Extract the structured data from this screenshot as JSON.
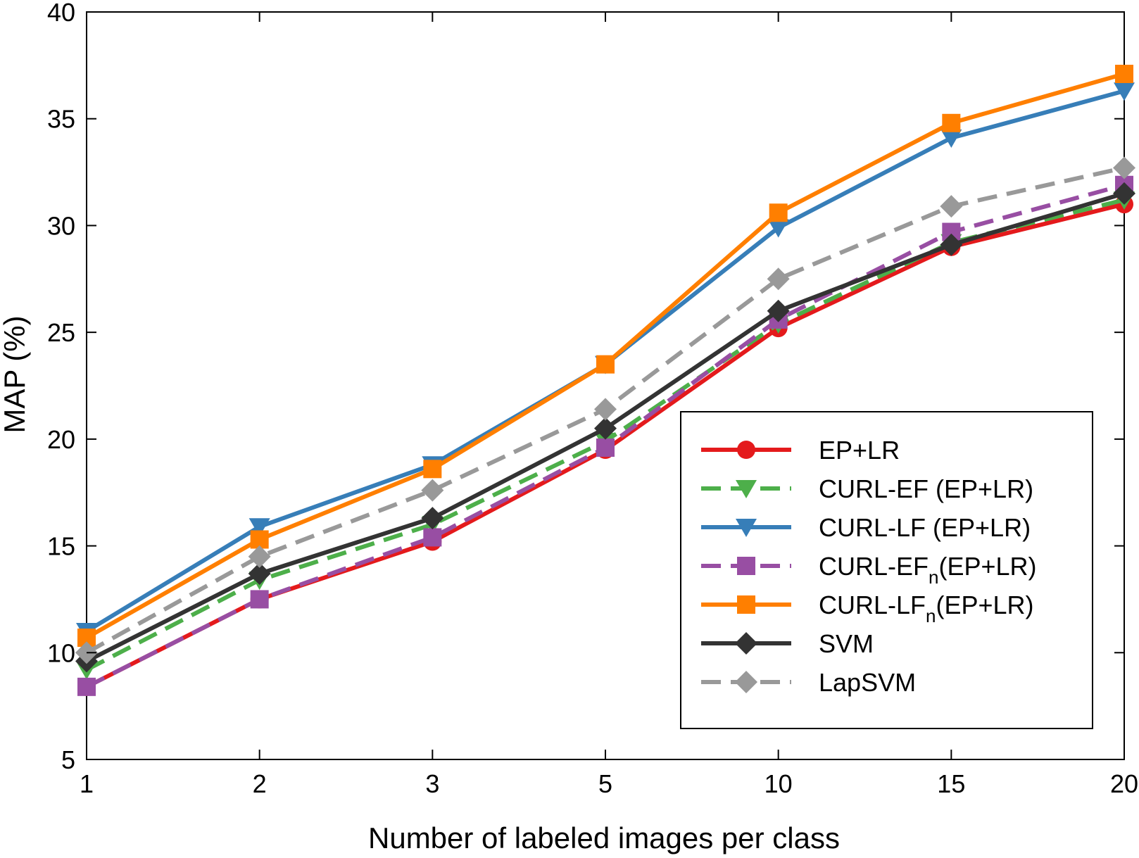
{
  "chart_data": {
    "type": "line",
    "title": "",
    "xlabel": "Number of labeled images per class",
    "ylabel": "MAP (%)",
    "categories": [
      "1",
      "2",
      "3",
      "5",
      "10",
      "15",
      "20"
    ],
    "ylim": [
      5,
      40
    ],
    "yticks": [
      "5",
      "10",
      "15",
      "20",
      "25",
      "30",
      "35",
      "40"
    ],
    "grid": false,
    "legend_position": "bottom-right",
    "series": [
      {
        "name": "EP+LR",
        "label_main": "EP+LR",
        "label_sub": "",
        "label_tail": "",
        "color": "#e41a1c",
        "dash": "solid",
        "marker": "circle",
        "values": [
          8.4,
          12.5,
          15.2,
          19.5,
          25.2,
          29.0,
          31.0
        ]
      },
      {
        "name": "CURL-EF (EP+LR)",
        "label_main": "CURL-EF (EP+LR)",
        "label_sub": "",
        "label_tail": "",
        "color": "#4daf4a",
        "dash": "dashed",
        "marker": "triangle-down",
        "values": [
          9.2,
          13.4,
          16.0,
          19.9,
          25.4,
          29.2,
          31.2
        ]
      },
      {
        "name": "CURL-LF (EP+LR)",
        "label_main": "CURL-LF (EP+LR)",
        "label_sub": "",
        "label_tail": "",
        "color": "#377eb8",
        "dash": "solid",
        "marker": "triangle-down",
        "values": [
          11.0,
          15.9,
          18.8,
          23.5,
          29.9,
          34.1,
          36.3
        ]
      },
      {
        "name": "CURL-EFn(EP+LR)",
        "label_main": "CURL-EF",
        "label_sub": "n",
        "label_tail": "(EP+LR)",
        "color": "#984ea3",
        "dash": "dashed",
        "marker": "square",
        "values": [
          8.4,
          12.5,
          15.4,
          19.6,
          25.6,
          29.7,
          31.9
        ]
      },
      {
        "name": "CURL-LFn(EP+LR)",
        "label_main": "CURL-LF",
        "label_sub": "n",
        "label_tail": "(EP+LR)",
        "color": "#ff7f00",
        "dash": "solid",
        "marker": "square",
        "values": [
          10.7,
          15.3,
          18.6,
          23.5,
          30.6,
          34.8,
          37.1
        ]
      },
      {
        "name": "SVM",
        "label_main": "SVM",
        "label_sub": "",
        "label_tail": "",
        "color": "#333333",
        "dash": "solid",
        "marker": "diamond",
        "values": [
          9.6,
          13.7,
          16.3,
          20.5,
          26.0,
          29.1,
          31.5
        ]
      },
      {
        "name": "LapSVM",
        "label_main": "LapSVM",
        "label_sub": "",
        "label_tail": "",
        "color": "#999999",
        "dash": "dashed",
        "marker": "diamond",
        "values": [
          10.0,
          14.5,
          17.6,
          21.4,
          27.5,
          30.9,
          32.7
        ]
      }
    ]
  }
}
